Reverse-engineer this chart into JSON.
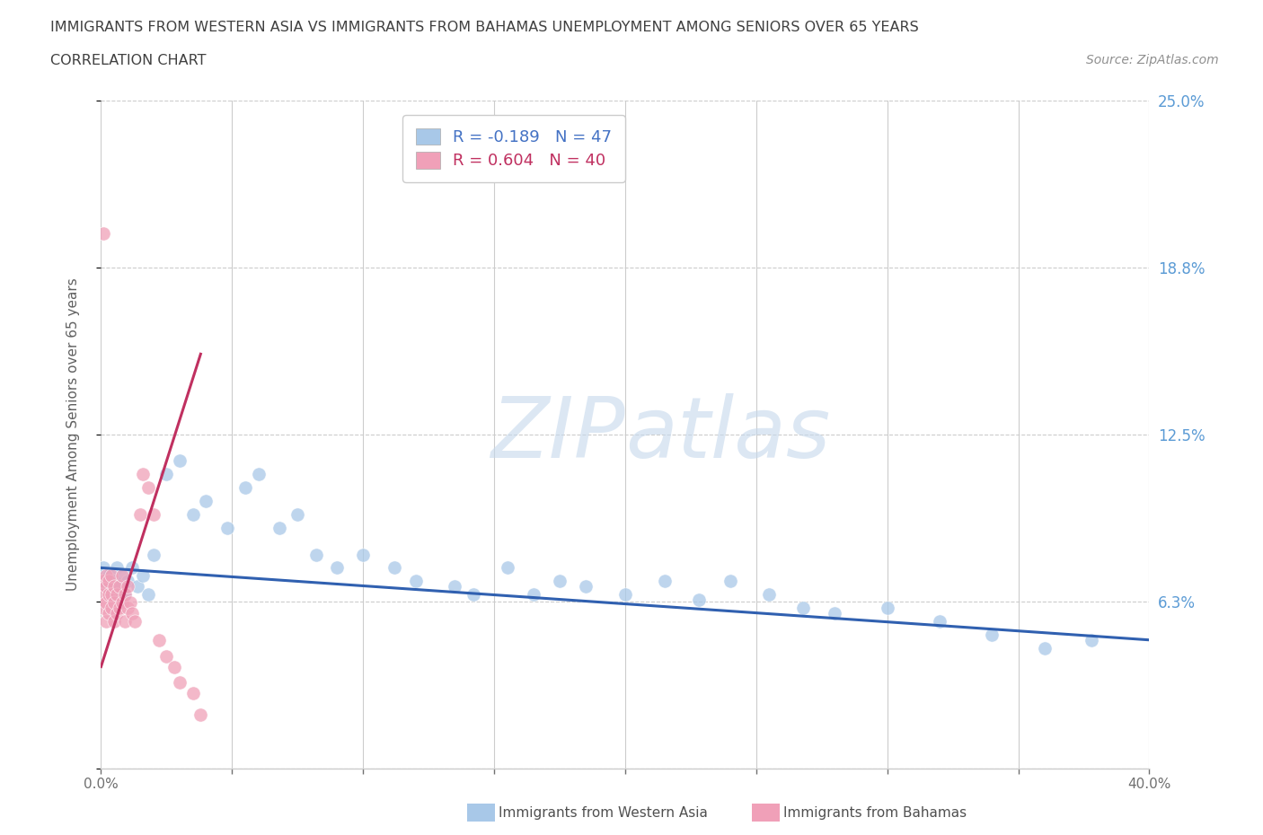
{
  "title_line1": "IMMIGRANTS FROM WESTERN ASIA VS IMMIGRANTS FROM BAHAMAS UNEMPLOYMENT AMONG SENIORS OVER 65 YEARS",
  "title_line2": "CORRELATION CHART",
  "source": "Source: ZipAtlas.com",
  "ylabel": "Unemployment Among Seniors over 65 years",
  "xlim": [
    0.0,
    0.4
  ],
  "ylim": [
    0.0,
    0.25
  ],
  "r_western_asia": -0.189,
  "n_western_asia": 47,
  "r_bahamas": 0.604,
  "n_bahamas": 40,
  "color_western_asia": "#A8C8E8",
  "color_bahamas": "#F0A0B8",
  "trendline_color_western_asia": "#3060B0",
  "trendline_color_bahamas": "#C03060",
  "watermark_zip": "ZIP",
  "watermark_atlas": "atlas",
  "grid_color": "#CCCCCC",
  "background_color": "#FFFFFF",
  "title_color": "#404040",
  "tick_color_right": "#5B9BD5",
  "wa_trend_x0": 0.0,
  "wa_trend_x1": 0.4,
  "wa_trend_y0": 0.075,
  "wa_trend_y1": 0.048,
  "bah_trend_x0": 0.0,
  "bah_trend_x1": 0.038,
  "bah_trend_y0": 0.038,
  "bah_trend_y1": 0.155,
  "wa_x": [
    0.001,
    0.002,
    0.003,
    0.004,
    0.005,
    0.006,
    0.007,
    0.008,
    0.009,
    0.01,
    0.012,
    0.014,
    0.016,
    0.018,
    0.02,
    0.025,
    0.03,
    0.035,
    0.04,
    0.048,
    0.055,
    0.06,
    0.068,
    0.075,
    0.082,
    0.09,
    0.1,
    0.112,
    0.12,
    0.135,
    0.142,
    0.155,
    0.165,
    0.175,
    0.185,
    0.2,
    0.215,
    0.228,
    0.24,
    0.255,
    0.268,
    0.28,
    0.3,
    0.32,
    0.34,
    0.36,
    0.378
  ],
  "wa_y": [
    0.075,
    0.068,
    0.072,
    0.065,
    0.07,
    0.075,
    0.068,
    0.072,
    0.065,
    0.07,
    0.075,
    0.068,
    0.072,
    0.065,
    0.08,
    0.11,
    0.115,
    0.095,
    0.1,
    0.09,
    0.105,
    0.11,
    0.09,
    0.095,
    0.08,
    0.075,
    0.08,
    0.075,
    0.07,
    0.068,
    0.065,
    0.075,
    0.065,
    0.07,
    0.068,
    0.065,
    0.07,
    0.063,
    0.07,
    0.065,
    0.06,
    0.058,
    0.06,
    0.055,
    0.05,
    0.045,
    0.048
  ],
  "bah_x": [
    0.001,
    0.001,
    0.001,
    0.001,
    0.002,
    0.002,
    0.002,
    0.002,
    0.003,
    0.003,
    0.003,
    0.004,
    0.004,
    0.004,
    0.005,
    0.005,
    0.005,
    0.006,
    0.006,
    0.007,
    0.007,
    0.008,
    0.008,
    0.009,
    0.009,
    0.01,
    0.01,
    0.011,
    0.012,
    0.013,
    0.015,
    0.016,
    0.018,
    0.02,
    0.022,
    0.025,
    0.028,
    0.03,
    0.035,
    0.038
  ],
  "bah_y": [
    0.06,
    0.065,
    0.07,
    0.2,
    0.055,
    0.062,
    0.068,
    0.072,
    0.058,
    0.065,
    0.07,
    0.06,
    0.065,
    0.072,
    0.055,
    0.062,
    0.068,
    0.058,
    0.065,
    0.06,
    0.068,
    0.062,
    0.072,
    0.055,
    0.065,
    0.06,
    0.068,
    0.062,
    0.058,
    0.055,
    0.095,
    0.11,
    0.105,
    0.095,
    0.048,
    0.042,
    0.038,
    0.032,
    0.028,
    0.02
  ],
  "legend_wa_label": "R = -0.189   N = 47",
  "legend_bah_label": "R = 0.604   N = 40",
  "bottom_legend_wa": "Immigrants from Western Asia",
  "bottom_legend_bah": "Immigrants from Bahamas"
}
